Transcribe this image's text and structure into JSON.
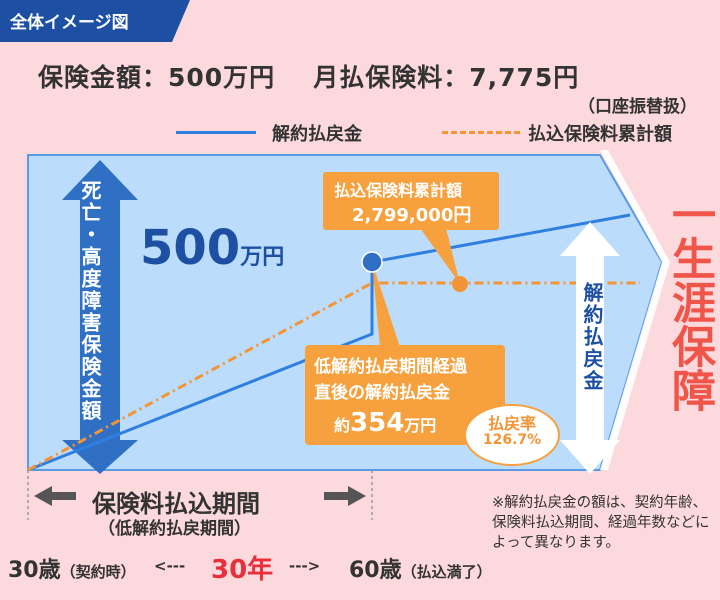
{
  "tag": {
    "label": "全体イメージ図"
  },
  "summary": {
    "sum_insured": "保険金額：500万円",
    "monthly_premium": "月払保険料：7,775円",
    "payment_note": "（口座振替扱）"
  },
  "legend": {
    "surrender_value": "解約払戻金",
    "cumulative_premium": "払込保険料累計額"
  },
  "colors": {
    "surrender_line": "#2f7fe0",
    "cumulative_line": "#f39436",
    "diagram_fill": "#bcdcfb",
    "arrow_blue": "#2f6fc4",
    "callout_orange": "#f6a13e",
    "lifetime_red": "#f0554a"
  },
  "diagram": {
    "death_benefit_label": "死亡・高度障害保険金額",
    "death_benefit_amount": "500",
    "death_benefit_unit": "万円",
    "cumulative_callout_title": "払込保険料累計額",
    "cumulative_callout_value": "2,799,000円",
    "low_refund_line1": "低解約払戻期間経過",
    "low_refund_line2": "直後の解約払戻金",
    "low_refund_prefix": "約",
    "low_refund_value": "354",
    "low_refund_unit": "万円",
    "refund_rate_label": "払戻率",
    "refund_rate_value": "126.7%",
    "surrender_vertical_label": "解約払戻金",
    "lifetime_label": "一生涯保障"
  },
  "period": {
    "label": "保険料払込期間",
    "sub": "（低解約払戻期間）",
    "start_age": "30歳",
    "start_note": "（契約時）",
    "arrow_left": "<---",
    "duration": "30年",
    "arrow_right": "--->",
    "end_age": "60歳",
    "end_note": "（払込満了）"
  },
  "footnote": "※解約払戻金の額は、契約年齢、保険料払込期間、経過年数などによって異なります。"
}
